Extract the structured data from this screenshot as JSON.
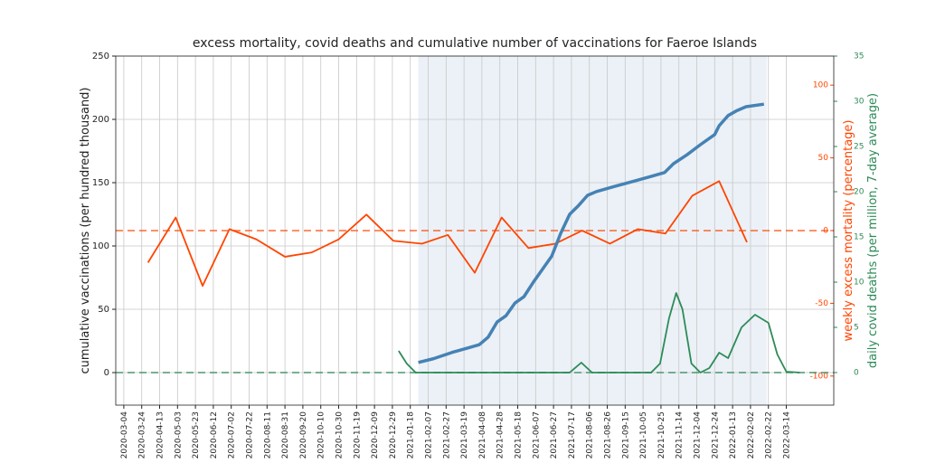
{
  "chart_data": {
    "type": "line",
    "title": "excess mortality, covid deaths and cumulative number of vaccinations for Faeroe Islands",
    "ylabel": "cumulative vaccinations (per hundred thousand)",
    "y2label": "weekly excess mortality (percentage)",
    "y3label": "daily covid deaths (per million, 7-day average)",
    "xlim": [
      "2020-02-24",
      "2022-05-06"
    ],
    "xticks": [
      "2020-03-04",
      "2020-03-24",
      "2020-04-13",
      "2020-05-03",
      "2020-05-23",
      "2020-06-12",
      "2020-07-02",
      "2020-07-22",
      "2020-08-11",
      "2020-08-31",
      "2020-09-20",
      "2020-10-10",
      "2020-10-30",
      "2020-11-19",
      "2020-12-09",
      "2020-12-29",
      "2021-01-18",
      "2021-02-07",
      "2021-02-27",
      "2021-03-19",
      "2021-04-08",
      "2021-04-28",
      "2021-05-18",
      "2021-06-07",
      "2021-06-27",
      "2021-07-17",
      "2021-08-06",
      "2021-08-26",
      "2021-09-15",
      "2021-10-05",
      "2021-10-25",
      "2021-11-14",
      "2021-12-04",
      "2021-12-24",
      "2022-01-13",
      "2022-02-02",
      "2022-02-22",
      "2022-03-14"
    ],
    "ylim": [
      -25.7,
      250
    ],
    "yticks": [
      0,
      50,
      100,
      150,
      200,
      250
    ],
    "y2lim": [
      -120,
      120
    ],
    "y2ticks": [
      -100,
      -50,
      0,
      50,
      100
    ],
    "y2color": "#ff4500",
    "y3lim": [
      -3.6,
      35
    ],
    "y3ticks": [
      0,
      5,
      10,
      15,
      20,
      25,
      30,
      35
    ],
    "y3color": "#2e8b57",
    "grid": true,
    "shade": [
      "2021-01-27",
      "2022-02-20"
    ],
    "shade_color": "#dde7f1",
    "hlines": [
      {
        "axis": "y2",
        "value": 0,
        "color": "#ff4500"
      },
      {
        "axis": "y3",
        "value": 0,
        "color": "#2e8b57"
      }
    ],
    "series": [
      {
        "axis": "y2",
        "color": "#ff4500",
        "width": 1.8,
        "x": [
          "2020-03-31",
          "2020-05-01",
          "2020-05-31",
          "2020-06-30",
          "2020-07-30",
          "2020-08-31",
          "2020-09-30",
          "2020-10-30",
          "2020-11-30",
          "2020-12-30",
          "2021-01-31",
          "2021-03-01",
          "2021-03-31",
          "2021-04-30",
          "2021-05-30",
          "2021-06-29",
          "2021-07-29",
          "2021-08-29",
          "2021-09-29",
          "2021-10-30",
          "2021-11-29",
          "2021-12-29",
          "2022-01-29"
        ],
        "values": [
          -22,
          9,
          -38,
          1,
          -6,
          -18,
          -15,
          -6,
          11,
          -7,
          -9,
          -3,
          -29,
          9,
          -12,
          -9,
          0,
          -9,
          1,
          -2,
          24,
          34,
          -8
        ]
      },
      {
        "axis": "y",
        "color": "#4682b4",
        "width": 3.5,
        "x": [
          "2021-01-27",
          "2021-02-13",
          "2021-03-06",
          "2021-03-21",
          "2021-04-05",
          "2021-04-15",
          "2021-04-25",
          "2021-05-05",
          "2021-05-15",
          "2021-05-25",
          "2021-06-05",
          "2021-06-15",
          "2021-06-25",
          "2021-07-05",
          "2021-07-15",
          "2021-07-25",
          "2021-08-04",
          "2021-08-14",
          "2021-09-03",
          "2021-09-24",
          "2021-10-14",
          "2021-10-29",
          "2021-11-08",
          "2021-11-23",
          "2021-12-08",
          "2021-12-24",
          "2021-12-29",
          "2022-01-08",
          "2022-01-18",
          "2022-01-28",
          "2022-02-17"
        ],
        "values": [
          8,
          11,
          16,
          19,
          22,
          28,
          40,
          45,
          55,
          60,
          72,
          82,
          92,
          110,
          125,
          132,
          140,
          143,
          147,
          151,
          155,
          158,
          165,
          172,
          180,
          188,
          195,
          203,
          207,
          210,
          212
        ]
      },
      {
        "axis": "y3",
        "color": "#2e8b57",
        "width": 1.8,
        "x": [
          "2021-01-05",
          "2021-01-14",
          "2021-01-24",
          "2021-07-15",
          "2021-07-28",
          "2021-08-09",
          "2021-10-14",
          "2021-10-24",
          "2021-11-03",
          "2021-11-11",
          "2021-11-18",
          "2021-11-28",
          "2021-12-08",
          "2021-12-18",
          "2021-12-29",
          "2022-01-08",
          "2022-01-23",
          "2022-02-07",
          "2022-02-22",
          "2022-03-04",
          "2022-03-14",
          "2022-03-29"
        ],
        "values": [
          2.4,
          1,
          0,
          0,
          1.1,
          0,
          0,
          1,
          6,
          8.8,
          7,
          1,
          0,
          0.5,
          2.2,
          1.6,
          5,
          6.4,
          5.5,
          2,
          0.1,
          0
        ]
      }
    ]
  }
}
